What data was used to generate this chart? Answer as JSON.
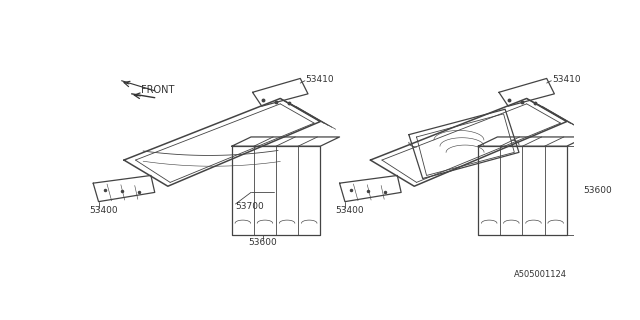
{
  "background_color": "#ffffff",
  "line_color": "#444444",
  "text_color": "#333333",
  "catalog_number": "A505001124",
  "fig_width": 6.4,
  "fig_height": 3.2,
  "dpi": 100
}
